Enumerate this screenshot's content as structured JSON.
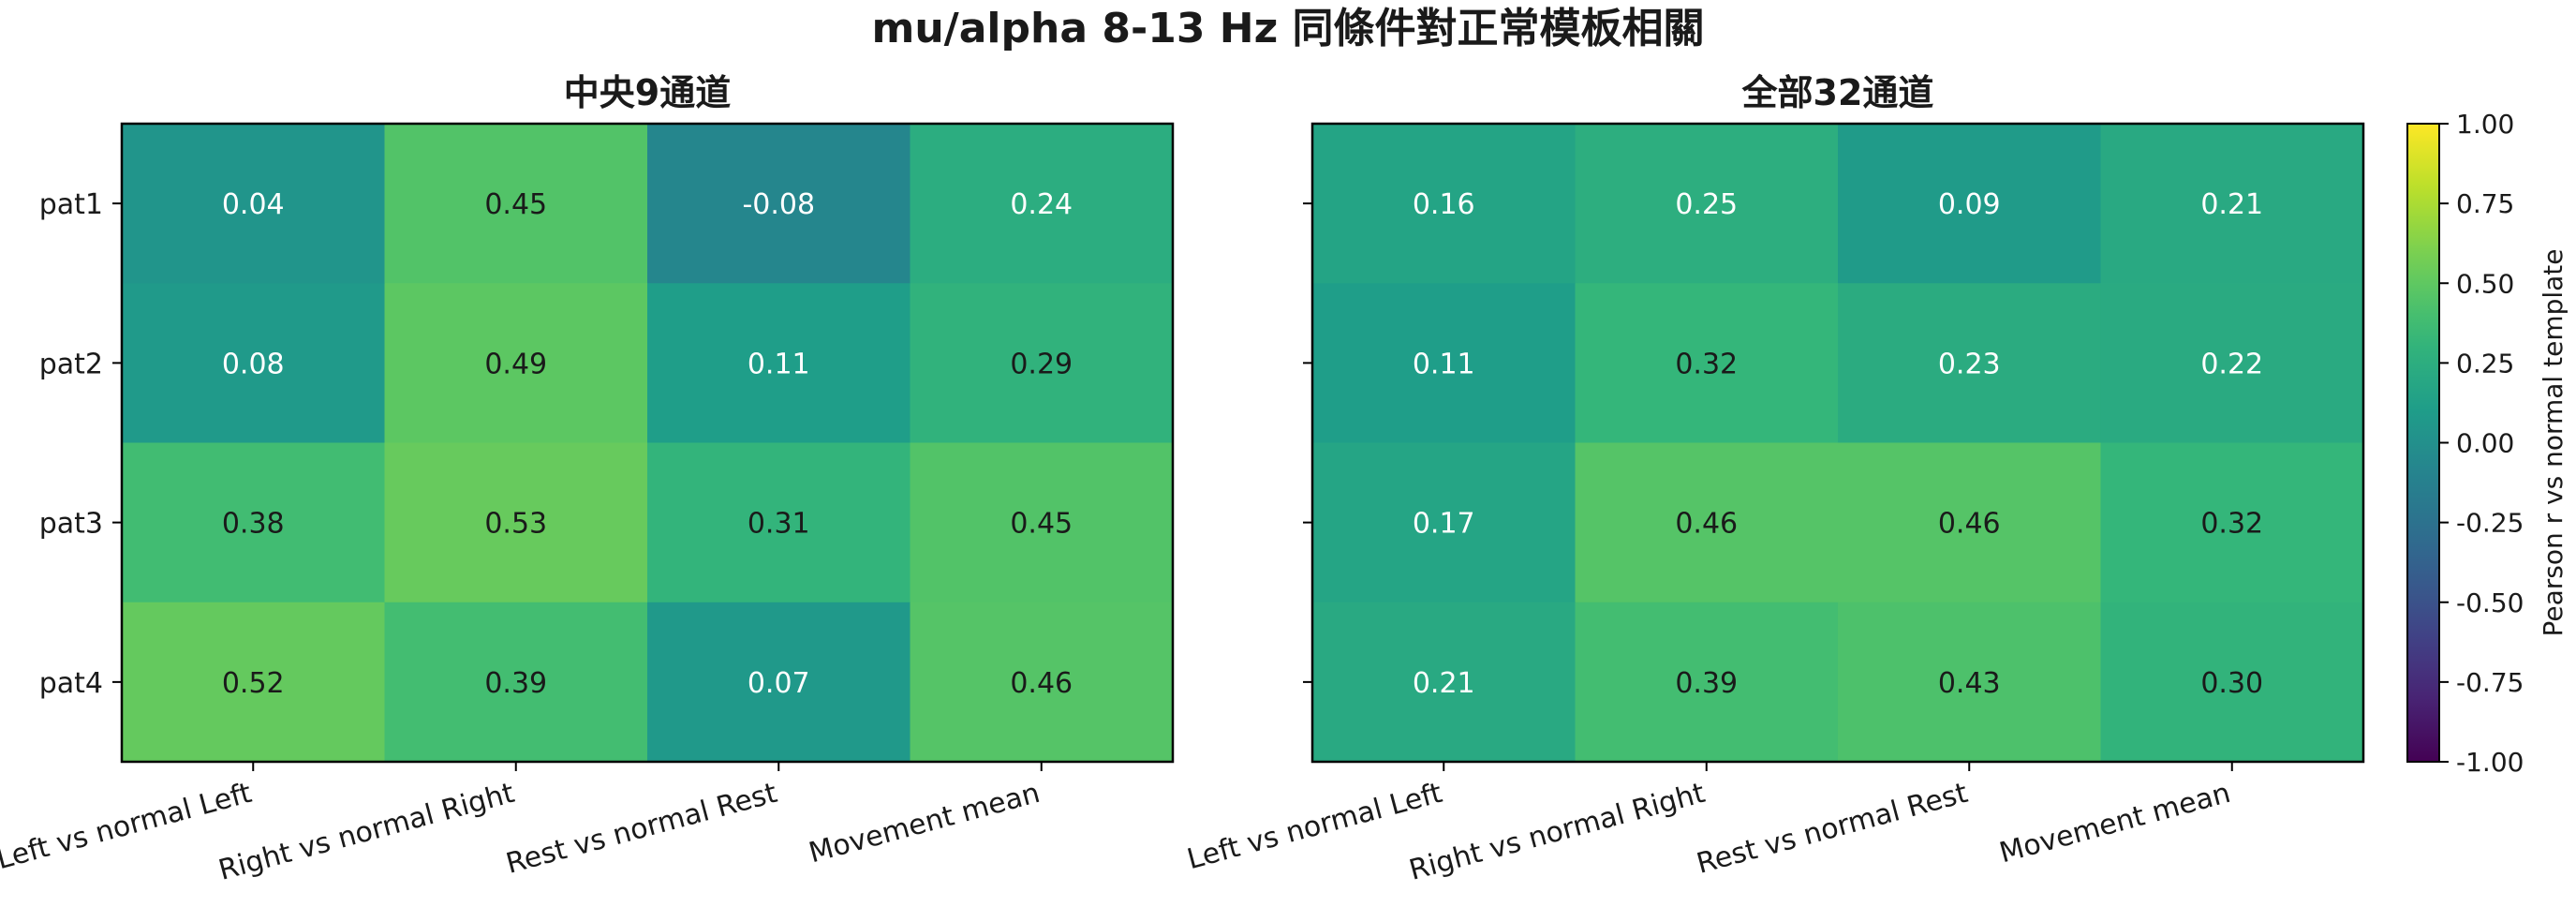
{
  "figure": {
    "title": "mu/alpha 8-13 Hz 同條件對正常模板相關"
  },
  "colorbar": {
    "label": "Pearson r vs normal template",
    "ticks": [
      "1.00",
      "0.75",
      "0.50",
      "0.25",
      "0.00",
      "-0.25",
      "-0.50",
      "-0.75",
      "-1.00"
    ]
  },
  "chart_data": [
    {
      "type": "heatmap",
      "title": "中央9通道",
      "rows": [
        "pat1",
        "pat2",
        "pat3",
        "pat4"
      ],
      "columns": [
        "Left vs normal Left",
        "Right vs normal Right",
        "Rest vs normal Rest",
        "Movement mean"
      ],
      "values": [
        [
          0.04,
          0.45,
          -0.08,
          0.24
        ],
        [
          0.08,
          0.49,
          0.11,
          0.29
        ],
        [
          0.38,
          0.53,
          0.31,
          0.45
        ],
        [
          0.52,
          0.39,
          0.07,
          0.46
        ]
      ],
      "cell_labels": [
        [
          "0.04",
          "0.45",
          "-0.08",
          "0.24"
        ],
        [
          "0.08",
          "0.49",
          "0.11",
          "0.29"
        ],
        [
          "0.38",
          "0.53",
          "0.31",
          "0.45"
        ],
        [
          "0.52",
          "0.39",
          "0.07",
          "0.46"
        ]
      ],
      "colormap": "viridis",
      "vmin": -1.0,
      "vmax": 1.0
    },
    {
      "type": "heatmap",
      "title": "全部32通道",
      "rows": [
        "pat1",
        "pat2",
        "pat3",
        "pat4"
      ],
      "columns": [
        "Left vs normal Left",
        "Right vs normal Right",
        "Rest vs normal Rest",
        "Movement mean"
      ],
      "values": [
        [
          0.16,
          0.25,
          0.09,
          0.21
        ],
        [
          0.11,
          0.32,
          0.23,
          0.22
        ],
        [
          0.17,
          0.46,
          0.46,
          0.32
        ],
        [
          0.21,
          0.39,
          0.43,
          0.3
        ]
      ],
      "cell_labels": [
        [
          "0.16",
          "0.25",
          "0.09",
          "0.21"
        ],
        [
          "0.11",
          "0.32",
          "0.23",
          "0.22"
        ],
        [
          "0.17",
          "0.46",
          "0.46",
          "0.32"
        ],
        [
          "0.21",
          "0.39",
          "0.43",
          "0.30"
        ]
      ],
      "colormap": "viridis",
      "vmin": -1.0,
      "vmax": 1.0
    }
  ]
}
